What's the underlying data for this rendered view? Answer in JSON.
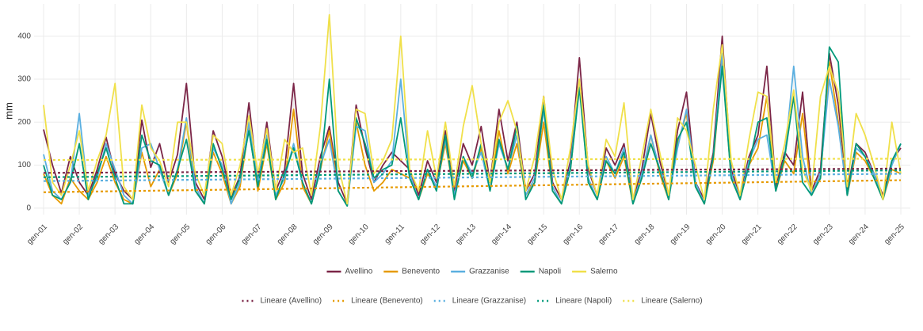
{
  "chart_data": {
    "type": "line",
    "y_label": "mm",
    "categories": [
      "gen-01",
      null,
      null,
      null,
      "gen-02",
      null,
      null,
      null,
      "gen-03",
      null,
      null,
      null,
      "gen-04",
      null,
      null,
      null,
      "gen-05",
      null,
      null,
      null,
      "gen-06",
      null,
      null,
      null,
      "gen-07",
      null,
      null,
      null,
      "gen-08",
      null,
      null,
      null,
      "gen-09",
      null,
      null,
      null,
      "gen-10",
      null,
      null,
      null,
      "gen-11",
      null,
      null,
      null,
      "gen-12",
      null,
      null,
      null,
      "gen-13",
      null,
      null,
      null,
      "gen-14",
      null,
      null,
      null,
      "gen-15",
      null,
      null,
      null,
      "gen-16",
      null,
      null,
      null,
      "gen-17",
      null,
      null,
      null,
      "gen-18",
      null,
      null,
      null,
      "gen-19",
      null,
      null,
      null,
      "gen-20",
      null,
      null,
      null,
      "gen-21",
      null,
      null,
      null,
      "gen-22",
      null,
      null,
      null,
      "gen-23",
      null,
      null,
      null,
      "gen-24",
      null,
      null,
      null,
      "gen-25"
    ],
    "series": [
      {
        "name": "Avellino",
        "color": "#7b2547",
        "values": [
          183,
          100,
          35,
          120,
          60,
          30,
          90,
          165,
          80,
          40,
          20,
          205,
          95,
          150,
          60,
          125,
          290,
          60,
          20,
          180,
          120,
          25,
          75,
          245,
          60,
          200,
          40,
          90,
          290,
          80,
          20,
          120,
          190,
          60,
          10,
          240,
          140,
          60,
          100,
          130,
          110,
          90,
          30,
          110,
          60,
          180,
          40,
          150,
          100,
          190,
          60,
          230,
          110,
          200,
          40,
          80,
          260,
          60,
          20,
          110,
          350,
          90,
          30,
          140,
          100,
          150,
          20,
          90,
          220,
          110,
          30,
          180,
          270,
          60,
          20,
          130,
          400,
          90,
          30,
          120,
          170,
          330,
          50,
          130,
          100,
          270,
          40,
          90,
          360,
          240,
          40,
          150,
          130,
          80,
          30,
          110,
          140
        ]
      },
      {
        "name": "Benevento",
        "color": "#e69a00",
        "values": [
          80,
          30,
          10,
          70,
          40,
          20,
          60,
          120,
          60,
          20,
          10,
          130,
          50,
          90,
          30,
          80,
          200,
          40,
          10,
          130,
          80,
          10,
          50,
          190,
          40,
          150,
          20,
          60,
          230,
          50,
          10,
          90,
          180,
          40,
          5,
          200,
          100,
          40,
          60,
          90,
          80,
          70,
          20,
          80,
          50,
          150,
          30,
          110,
          70,
          140,
          40,
          180,
          80,
          150,
          30,
          60,
          200,
          40,
          10,
          90,
          290,
          60,
          20,
          110,
          70,
          120,
          10,
          70,
          170,
          80,
          20,
          150,
          220,
          50,
          10,
          110,
          340,
          70,
          20,
          100,
          140,
          260,
          40,
          110,
          80,
          220,
          30,
          70,
          340,
          200,
          30,
          130,
          110,
          70,
          20,
          90,
          80
        ]
      },
      {
        "name": "Grazzanise",
        "color": "#5aafe0",
        "values": [
          125,
          40,
          20,
          60,
          220,
          30,
          70,
          150,
          90,
          30,
          10,
          140,
          150,
          90,
          30,
          90,
          210,
          50,
          10,
          140,
          100,
          10,
          60,
          200,
          60,
          170,
          30,
          70,
          150,
          60,
          10,
          100,
          160,
          40,
          5,
          190,
          180,
          60,
          80,
          110,
          300,
          80,
          20,
          90,
          50,
          160,
          30,
          120,
          80,
          130,
          40,
          150,
          90,
          170,
          30,
          70,
          230,
          50,
          10,
          100,
          290,
          70,
          20,
          120,
          80,
          140,
          10,
          80,
          170,
          90,
          20,
          140,
          230,
          60,
          10,
          120,
          360,
          80,
          20,
          110,
          160,
          170,
          40,
          120,
          330,
          120,
          30,
          80,
          300,
          190,
          30,
          140,
          120,
          80,
          20,
          100,
          150
        ]
      },
      {
        "name": "Napoli",
        "color": "#00997a",
        "values": [
          100,
          30,
          20,
          60,
          150,
          20,
          80,
          140,
          70,
          10,
          10,
          170,
          110,
          100,
          30,
          90,
          160,
          40,
          10,
          150,
          90,
          20,
          70,
          180,
          50,
          160,
          20,
          80,
          140,
          60,
          10,
          90,
          300,
          40,
          5,
          210,
          150,
          70,
          90,
          100,
          210,
          70,
          20,
          90,
          40,
          170,
          20,
          120,
          70,
          150,
          40,
          160,
          90,
          190,
          20,
          60,
          240,
          40,
          10,
          90,
          280,
          60,
          20,
          110,
          80,
          130,
          10,
          70,
          150,
          90,
          20,
          160,
          200,
          50,
          10,
          120,
          330,
          70,
          20,
          100,
          200,
          210,
          40,
          120,
          260,
          60,
          30,
          70,
          375,
          340,
          30,
          150,
          120,
          70,
          20,
          110,
          150
        ]
      },
      {
        "name": "Salerno",
        "color": "#f0e04a",
        "values": [
          240,
          60,
          30,
          100,
          180,
          40,
          110,
          170,
          290,
          50,
          20,
          240,
          140,
          110,
          50,
          200,
          200,
          80,
          30,
          170,
          150,
          30,
          100,
          215,
          80,
          185,
          40,
          160,
          130,
          140,
          30,
          190,
          450,
          100,
          10,
          230,
          220,
          80,
          110,
          160,
          400,
          90,
          40,
          180,
          70,
          200,
          50,
          190,
          285,
          150,
          60,
          200,
          250,
          180,
          40,
          120,
          260,
          90,
          20,
          140,
          300,
          100,
          30,
          160,
          120,
          245,
          20,
          120,
          230,
          130,
          30,
          210,
          180,
          100,
          20,
          230,
          380,
          110,
          30,
          160,
          270,
          260,
          60,
          150,
          275,
          90,
          40,
          260,
          330,
          270,
          50,
          220,
          170,
          100,
          20,
          200,
          80
        ]
      }
    ],
    "trendlines": [
      {
        "name": "Lineare (Avellino)",
        "color": "#7b2547",
        "values": [
          82,
          92
        ]
      },
      {
        "name": "Lineare (Benevento)",
        "color": "#e69a00",
        "values": [
          37,
          65
        ]
      },
      {
        "name": "Lineare (Grazzanise)",
        "color": "#5aafe0",
        "values": [
          63,
          80
        ]
      },
      {
        "name": "Lineare (Napoli)",
        "color": "#00997a",
        "values": [
          72,
          88
        ]
      },
      {
        "name": "Lineare (Salerno)",
        "color": "#f0e04a",
        "values": [
          112,
          115
        ]
      }
    ],
    "ylim": [
      -15,
      475
    ],
    "yticks": [
      0,
      100,
      200,
      300,
      400
    ],
    "grid": true
  }
}
